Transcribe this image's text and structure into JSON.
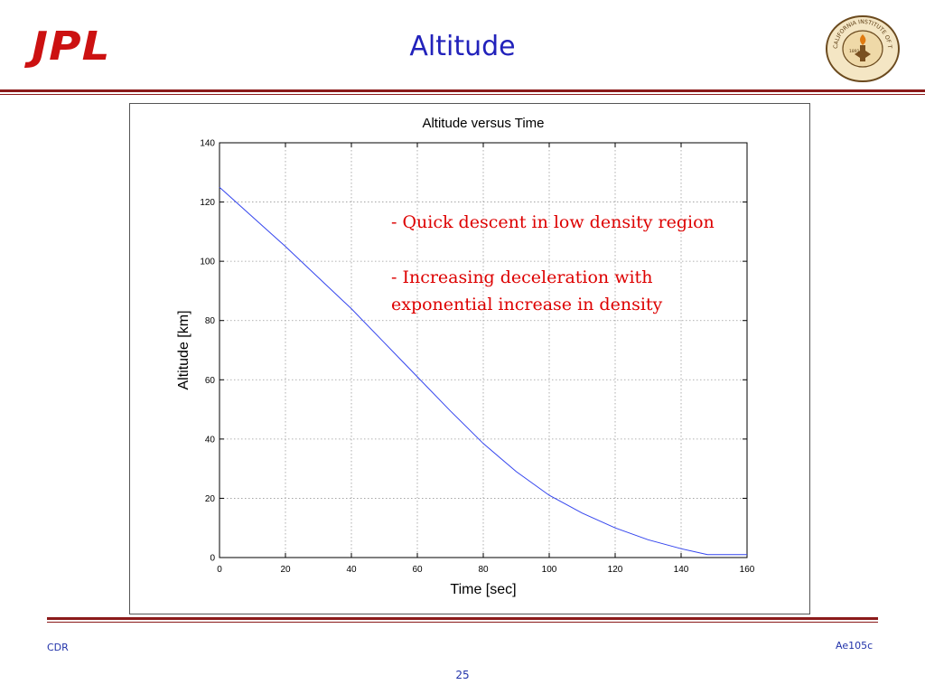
{
  "slide": {
    "title": "Altitude",
    "logo_text": "JPL",
    "seal_text": "CALIFORNIA INSTITUTE OF TECHNOLOGY",
    "seal_year": "1891",
    "footer_left": "CDR",
    "footer_right": "Ae105c",
    "page_number": "25",
    "accent_color": "#8b1a1a",
    "title_color": "#2222bb",
    "annotation_color": "#dd0000"
  },
  "annotations": [
    {
      "text": "- Quick descent in low density region"
    },
    {
      "lines": [
        "- Increasing deceleration with",
        "exponential increase  in density"
      ]
    }
  ],
  "chart_data": {
    "type": "line",
    "title": "Altitude versus Time",
    "xlabel": "Time [sec]",
    "ylabel": "Altitude [km]",
    "xlim": [
      0,
      160
    ],
    "ylim": [
      0,
      140
    ],
    "xticks": [
      0,
      20,
      40,
      60,
      80,
      100,
      120,
      140,
      160
    ],
    "yticks": [
      0,
      20,
      40,
      60,
      80,
      100,
      120,
      140
    ],
    "grid": true,
    "series": [
      {
        "color": "#3344ee",
        "x": [
          0,
          10,
          20,
          30,
          40,
          50,
          60,
          70,
          80,
          90,
          100,
          110,
          120,
          130,
          140,
          148,
          160
        ],
        "y": [
          125,
          115,
          105,
          94.5,
          84,
          72.5,
          61,
          49.5,
          38.5,
          29,
          21,
          15,
          10,
          6,
          3,
          1,
          1
        ]
      }
    ]
  }
}
